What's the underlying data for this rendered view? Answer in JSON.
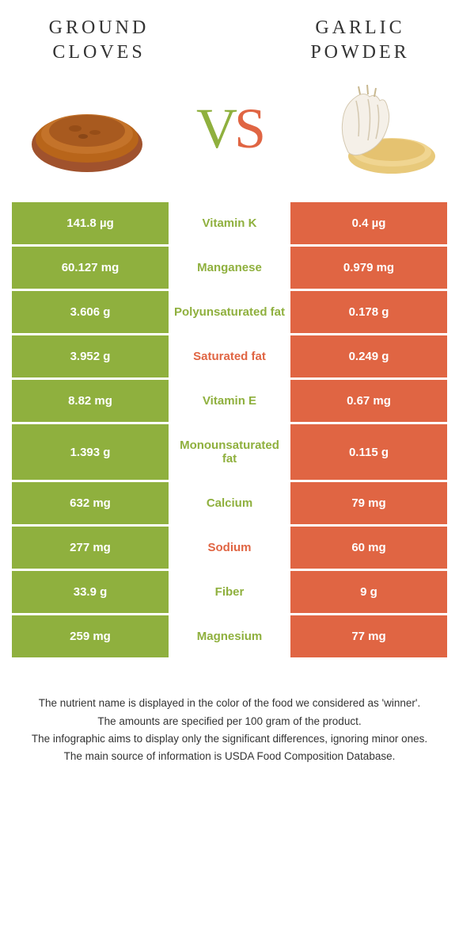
{
  "header": {
    "left_title": "GROUND CLOVES",
    "right_title": "GARLIC POWDER"
  },
  "vs": {
    "v": "V",
    "s": "S"
  },
  "colors": {
    "green": "#8fb03e",
    "orange": "#e06543",
    "text_dark": "#333333",
    "white": "#ffffff"
  },
  "rows": [
    {
      "left": "141.8 µg",
      "label": "Vitamin K",
      "right": "0.4 µg",
      "label_color": "#8fb03e"
    },
    {
      "left": "60.127 mg",
      "label": "Manganese",
      "right": "0.979 mg",
      "label_color": "#8fb03e"
    },
    {
      "left": "3.606 g",
      "label": "Polyunsaturated fat",
      "right": "0.178 g",
      "label_color": "#8fb03e"
    },
    {
      "left": "3.952 g",
      "label": "Saturated fat",
      "right": "0.249 g",
      "label_color": "#e06543"
    },
    {
      "left": "8.82 mg",
      "label": "Vitamin E",
      "right": "0.67 mg",
      "label_color": "#8fb03e"
    },
    {
      "left": "1.393 g",
      "label": "Monounsaturated fat",
      "right": "0.115 g",
      "label_color": "#8fb03e"
    },
    {
      "left": "632 mg",
      "label": "Calcium",
      "right": "79 mg",
      "label_color": "#8fb03e"
    },
    {
      "left": "277 mg",
      "label": "Sodium",
      "right": "60 mg",
      "label_color": "#e06543"
    },
    {
      "left": "33.9 g",
      "label": "Fiber",
      "right": "9 g",
      "label_color": "#8fb03e"
    },
    {
      "left": "259 mg",
      "label": "Magnesium",
      "right": "77 mg",
      "label_color": "#8fb03e"
    }
  ],
  "footnotes": {
    "l1": "The nutrient name is displayed in the color of the food we considered as 'winner'.",
    "l2": "The amounts are specified per 100 gram of the product.",
    "l3": "The infographic aims to display only the significant differences, ignoring minor ones.",
    "l4": "The main source of information is USDA Food Composition Database."
  }
}
